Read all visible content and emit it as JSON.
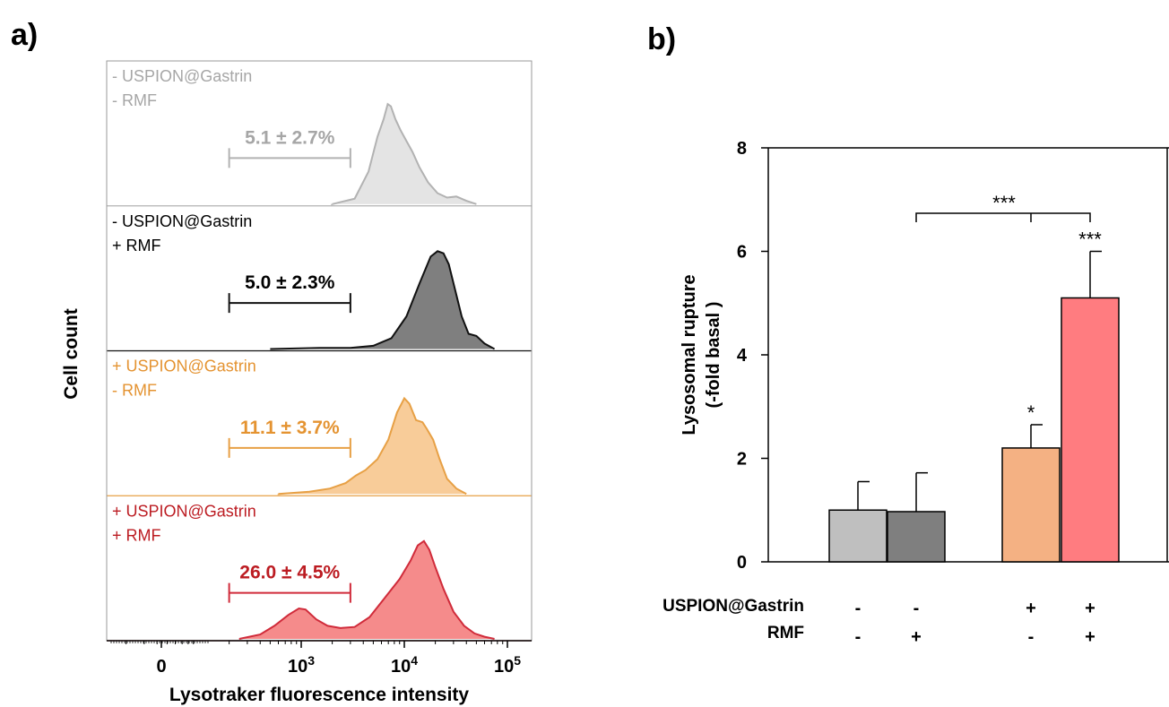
{
  "panel_a_label": "a)",
  "panel_b_label": "b)",
  "chart_data": [
    {
      "type": "area",
      "panel": "a",
      "xlabel": "Lysotraker fluorescence intensity",
      "ylabel": "Cell count",
      "x_scale": "log",
      "x_ticks": [
        {
          "value": 0,
          "base": "0",
          "exp": ""
        },
        {
          "value": 1000,
          "base": "10",
          "exp": "3"
        },
        {
          "value": 10000,
          "base": "10",
          "exp": "4"
        },
        {
          "value": 100000,
          "base": "10",
          "exp": "5"
        }
      ],
      "gate_range": [
        200,
        3000
      ],
      "panels": [
        {
          "lines": [
            "- USPION@Gastrin",
            "- RMF"
          ],
          "gate_label": "5.1 ± 2.7%",
          "color": "#b2b2b2",
          "fill": "#e4e4e4",
          "label_color": "#a6a6a6",
          "curve": [
            [
              2000,
              0
            ],
            [
              3300,
              0.05
            ],
            [
              4500,
              0.3
            ],
            [
              5500,
              0.62
            ],
            [
              6300,
              0.78
            ],
            [
              6900,
              0.92
            ],
            [
              7400,
              0.9
            ],
            [
              8200,
              0.78
            ],
            [
              9200,
              0.68
            ],
            [
              10500,
              0.58
            ],
            [
              12000,
              0.48
            ],
            [
              14000,
              0.34
            ],
            [
              17000,
              0.2
            ],
            [
              21000,
              0.1
            ],
            [
              26000,
              0.06
            ],
            [
              32000,
              0.07
            ],
            [
              40000,
              0.03
            ],
            [
              50000,
              0
            ]
          ]
        },
        {
          "lines": [
            "- USPION@Gastrin",
            "+ RMF"
          ],
          "gate_label": "5.0 ± 2.3%",
          "color": "#111111",
          "fill": "#7f7f7f",
          "label_color": "#000000",
          "curve": [
            [
              500,
              0
            ],
            [
              1500,
              0.01
            ],
            [
              3000,
              0.01
            ],
            [
              5000,
              0.03
            ],
            [
              7500,
              0.1
            ],
            [
              10500,
              0.3
            ],
            [
              14000,
              0.6
            ],
            [
              18000,
              0.85
            ],
            [
              21000,
              0.9
            ],
            [
              24000,
              0.88
            ],
            [
              27000,
              0.78
            ],
            [
              31000,
              0.55
            ],
            [
              36000,
              0.3
            ],
            [
              42000,
              0.14
            ],
            [
              50000,
              0.12
            ],
            [
              60000,
              0.05
            ],
            [
              75000,
              0
            ]
          ]
        },
        {
          "lines": [
            "+ USPION@Gastrin",
            "- RMF"
          ],
          "gate_label": "11.1 ± 3.7%",
          "color": "#e7a045",
          "fill": "#f8cc99",
          "label_color": "#e49331",
          "curve": [
            [
              600,
              0
            ],
            [
              1200,
              0.02
            ],
            [
              1900,
              0.05
            ],
            [
              2700,
              0.1
            ],
            [
              3400,
              0.17
            ],
            [
              4200,
              0.22
            ],
            [
              5500,
              0.32
            ],
            [
              7000,
              0.5
            ],
            [
              8500,
              0.75
            ],
            [
              10000,
              0.88
            ],
            [
              11200,
              0.83
            ],
            [
              13000,
              0.68
            ],
            [
              15000,
              0.66
            ],
            [
              16500,
              0.6
            ],
            [
              19000,
              0.5
            ],
            [
              22000,
              0.32
            ],
            [
              26000,
              0.14
            ],
            [
              32000,
              0.05
            ],
            [
              40000,
              0
            ]
          ]
        },
        {
          "lines": [
            "+ USPION@Gastrin",
            "+ RMF"
          ],
          "gate_label": "26.0 ± 4.5%",
          "color": "#d02b3a",
          "fill": "#f58b8b",
          "label_color": "#bc1c22",
          "curve": [
            [
              250,
              0
            ],
            [
              400,
              0.04
            ],
            [
              550,
              0.12
            ],
            [
              750,
              0.22
            ],
            [
              950,
              0.28
            ],
            [
              1100,
              0.27
            ],
            [
              1400,
              0.18
            ],
            [
              1800,
              0.12
            ],
            [
              2400,
              0.1
            ],
            [
              3300,
              0.11
            ],
            [
              4600,
              0.2
            ],
            [
              6500,
              0.38
            ],
            [
              9000,
              0.55
            ],
            [
              11500,
              0.72
            ],
            [
              13500,
              0.86
            ],
            [
              15500,
              0.9
            ],
            [
              17500,
              0.82
            ],
            [
              20000,
              0.66
            ],
            [
              24000,
              0.46
            ],
            [
              30000,
              0.25
            ],
            [
              38000,
              0.12
            ],
            [
              48000,
              0.05
            ],
            [
              60000,
              0.02
            ],
            [
              75000,
              0
            ]
          ]
        }
      ]
    },
    {
      "type": "bar",
      "panel": "b",
      "ylabel_lines": [
        "Lysosomal rupture",
        "(-fold basal )"
      ],
      "ylim": [
        0,
        8
      ],
      "yticks": [
        "0",
        "2",
        "4",
        "6",
        "8"
      ],
      "bars": [
        {
          "value": 1.0,
          "error": 0.55,
          "color": "#bfbfbf",
          "sig": "",
          "gastrin": "-",
          "rmf": "-"
        },
        {
          "value": 0.97,
          "error": 0.75,
          "color": "#7f7f7f",
          "sig": "",
          "gastrin": "-",
          "rmf": "+"
        },
        {
          "value": 2.2,
          "error": 0.45,
          "color": "#f4b183",
          "sig": "*",
          "gastrin": "+",
          "rmf": "-"
        },
        {
          "value": 5.1,
          "error": 0.9,
          "color": "#ff7c80",
          "sig": "***",
          "gastrin": "+",
          "rmf": "+"
        }
      ],
      "bracket_label": "***",
      "factor_labels": {
        "gastrin": "USPION@Gastrin",
        "rmf": "RMF"
      }
    }
  ]
}
